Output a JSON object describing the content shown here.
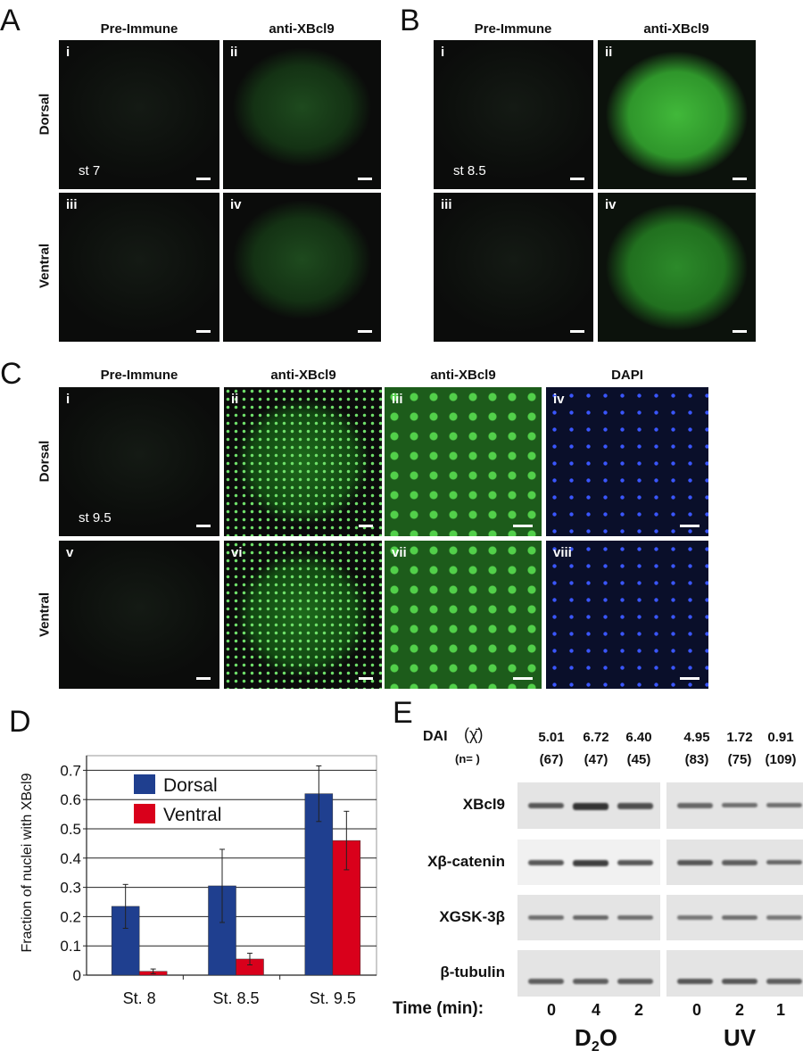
{
  "panel_a": {
    "letter": "A",
    "headers": [
      "Pre-Immune",
      "anti-XBcl9"
    ],
    "rows": [
      "Dorsal",
      "Ventral"
    ],
    "panels": [
      "i",
      "ii",
      "iii",
      "iv"
    ],
    "stage": "st 7"
  },
  "panel_b": {
    "letter": "B",
    "headers": [
      "Pre-Immune",
      "anti-XBcl9"
    ],
    "panels": [
      "i",
      "ii",
      "iii",
      "iv"
    ],
    "stage": "st 8.5"
  },
  "panel_c": {
    "letter": "C",
    "headers": [
      "Pre-Immune",
      "anti-XBcl9",
      "anti-XBcl9",
      "DAPI"
    ],
    "rows": [
      "Dorsal",
      "Ventral"
    ],
    "panels": [
      "i",
      "ii",
      "iii",
      "iv",
      "v",
      "vi",
      "vii",
      "viii"
    ],
    "stage": "st 9.5"
  },
  "colors": {
    "green_stain": "#3fc43a",
    "dapi_blue": "#2a3cff",
    "dorsal": "#1f3f8f",
    "ventral": "#d9001b"
  },
  "chart_data": {
    "letter": "D",
    "type": "bar",
    "categories": [
      "St. 8",
      "St. 8.5",
      "St. 9.5"
    ],
    "ylabel": "Fraction of nuclei with XBcl9",
    "ylim": [
      0,
      0.75
    ],
    "yticks": [
      "0",
      "0.1",
      "0.2",
      "0.3",
      "0.4",
      "0.5",
      "0.6",
      "0.7"
    ],
    "grid": true,
    "legend_position": "top-left",
    "series": [
      {
        "name": "Dorsal",
        "values": [
          0.235,
          0.305,
          0.62
        ],
        "errors": [
          0.075,
          0.125,
          0.095
        ]
      },
      {
        "name": "Ventral",
        "values": [
          0.013,
          0.055,
          0.46
        ],
        "errors": [
          0.008,
          0.02,
          0.1
        ]
      }
    ]
  },
  "panel_e": {
    "letter": "E",
    "dai_label": "DAI",
    "dai_symbol": "(χ̄)",
    "n_label": "(n= )",
    "dai_values": [
      "5.01",
      "6.72",
      "6.40",
      "4.95",
      "1.72",
      "0.91"
    ],
    "n_values": [
      "(67)",
      "(47)",
      "(45)",
      "(83)",
      "(75)",
      "(109)"
    ],
    "blot_rows": [
      "XBcl9",
      "Xβ-catenin",
      "XGSK-3β",
      "β-tubulin"
    ],
    "time_label": "Time (min):",
    "times": [
      "0",
      "4",
      "2",
      "0",
      "2",
      "1"
    ],
    "groups": [
      {
        "main": "D",
        "sub": "2",
        "rest": "O"
      },
      {
        "main": "UV",
        "sub": "",
        "rest": ""
      }
    ]
  }
}
